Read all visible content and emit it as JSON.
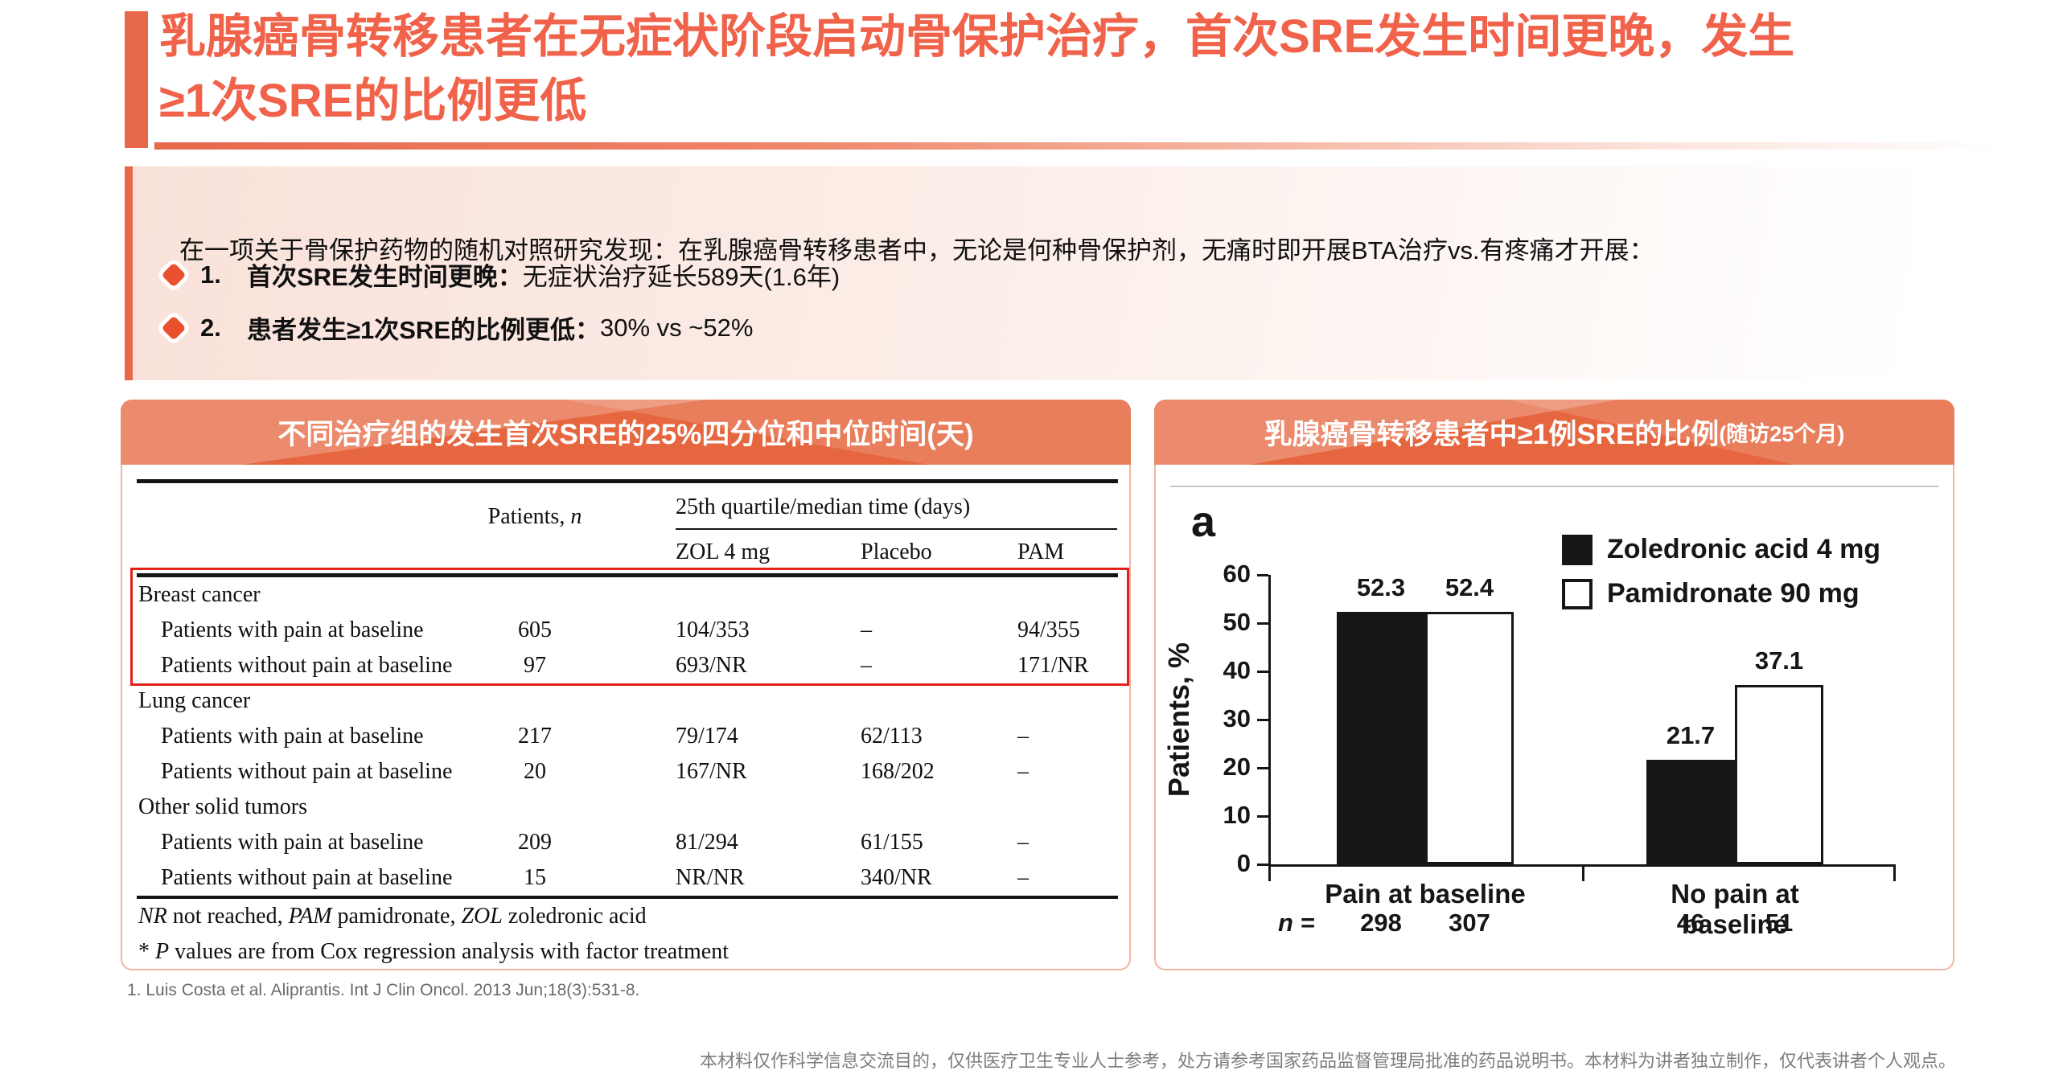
{
  "header": {
    "title_lines": [
      "乳腺癌骨转移患者在无症状阶段启动骨保护治疗，首次SRE发生时间更晚，发生",
      "≥1次SRE的比例更低"
    ]
  },
  "keypoints": {
    "lead": "在一项关于骨保护药物的随机对照研究发现：在乳腺癌骨转移患者中，无论是何种骨保护剂，无痛时即开展BTA治疗vs.有疼痛才开展：",
    "items": [
      {
        "num": "1.",
        "bold": "首次SRE发生时间更晚：",
        "text": "无症状治疗延长589天(1.6年)"
      },
      {
        "num": "2.",
        "bold": "患者发生≥1次SRE的比例更低：",
        "text": "30% vs ~52%"
      }
    ]
  },
  "table_panel": {
    "title": "不同治疗组的发生首次SRE的25%四分位和中位时间(天)",
    "header": {
      "patients_prefix": "Patients, ",
      "patients_n": "n",
      "group": "25th quartile/median time (days)",
      "sub": [
        "ZOL 4 mg",
        "Placebo",
        "PAM"
      ]
    },
    "rows": [
      {
        "label": "Breast cancer",
        "indent": false,
        "patients": "",
        "zol": "",
        "placebo": "",
        "pam": ""
      },
      {
        "label": "Patients with pain at baseline",
        "indent": true,
        "patients": "605",
        "zol": "104/353",
        "placebo": "–",
        "pam": "94/355"
      },
      {
        "label": "Patients without pain at baseline",
        "indent": true,
        "patients": "97",
        "zol": "693/NR",
        "placebo": "–",
        "pam": "171/NR"
      },
      {
        "label": "Lung cancer",
        "indent": false,
        "patients": "",
        "zol": "",
        "placebo": "",
        "pam": ""
      },
      {
        "label": "Patients with pain at baseline",
        "indent": true,
        "patients": "217",
        "zol": "79/174",
        "placebo": "62/113",
        "pam": "–"
      },
      {
        "label": "Patients without pain at baseline",
        "indent": true,
        "patients": "20",
        "zol": "167/NR",
        "placebo": "168/202",
        "pam": "–"
      },
      {
        "label": "Other solid tumors",
        "indent": false,
        "patients": "",
        "zol": "",
        "placebo": "",
        "pam": ""
      },
      {
        "label": "Patients with pain at baseline",
        "indent": true,
        "patients": "209",
        "zol": "81/294",
        "placebo": "61/155",
        "pam": "–"
      },
      {
        "label": "Patients without pain at baseline",
        "indent": true,
        "patients": "15",
        "zol": "NR/NR",
        "placebo": "340/NR",
        "pam": "–"
      }
    ],
    "footnote1": {
      "i1": "NR",
      "t1": " not reached, ",
      "i2": "PAM",
      "t2": " pamidronate, ",
      "i3": "ZOL",
      "t3": " zoledronic acid"
    },
    "footnote2": {
      "t0": "* ",
      "i1": "P",
      "t1": " values are from Cox regression analysis with factor treatment"
    }
  },
  "chart_panel": {
    "title": "乳腺癌骨转移患者中≥1例SRE的比例",
    "title_suffix": "(随访25个月)"
  },
  "chart_data": {
    "type": "bar",
    "figure_label": "a",
    "categories": [
      "Pain at baseline",
      "No pain at baseline"
    ],
    "series": [
      {
        "name": "Zoledronic acid 4 mg",
        "fill": "#161616",
        "values": [
          52.3,
          21.7
        ]
      },
      {
        "name": "Pamidronate 90 mg",
        "fill": "#ffffff",
        "values": [
          52.4,
          37.1
        ]
      }
    ],
    "n_label": "n =",
    "n_values": [
      [
        298,
        307
      ],
      [
        46,
        51
      ]
    ],
    "ylabel": "Patients, %",
    "ylim": [
      0,
      60
    ],
    "ytick_step": 10,
    "grid": false,
    "legend_position": "top-right"
  },
  "citation": "1. Luis Costa et al. Aliprantis. Int J Clin Oncol. 2013 Jun;18(3):531-8.",
  "disclaimer": "本材料仅作科学信息交流目的，仅供医疗卫生专业人士参考，处方请参考国家药品监督管理局批准的药品说明书。本材料为讲者独立制作，仅代表讲者个人观点。"
}
